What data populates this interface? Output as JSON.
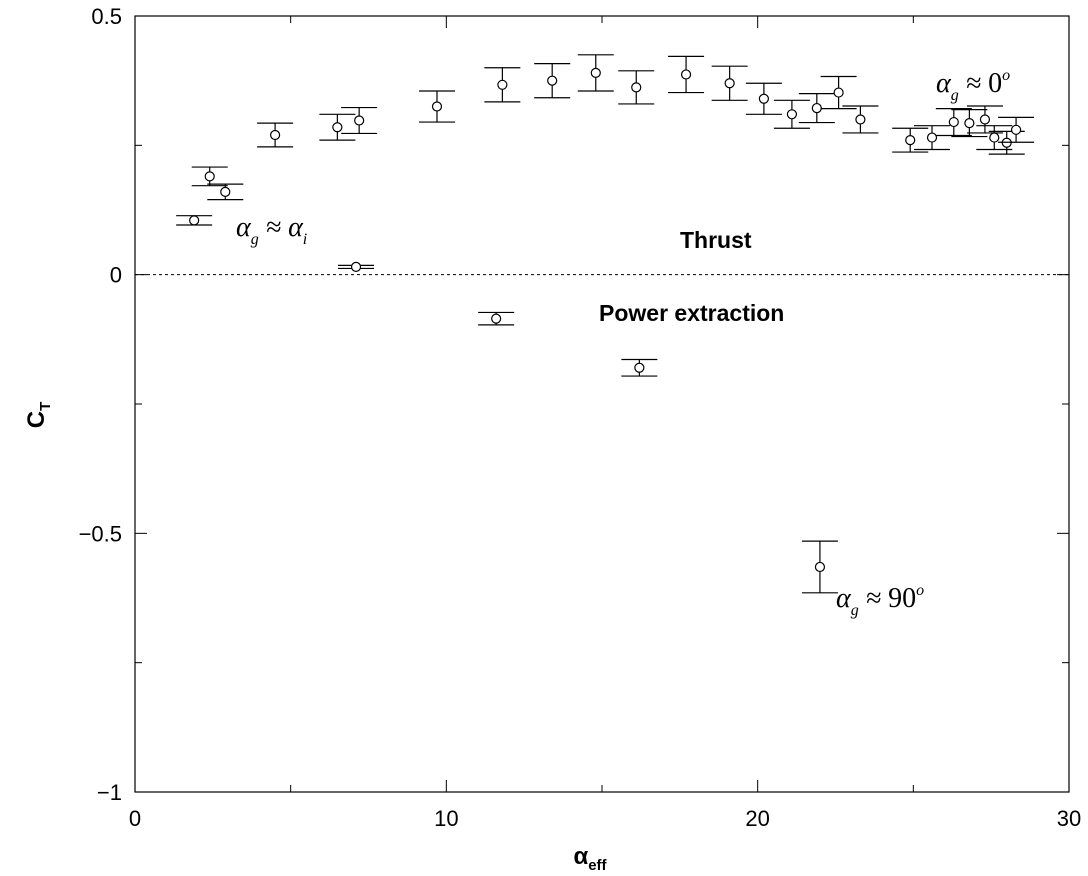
{
  "chart_data": {
    "type": "scatter",
    "title": "",
    "xlabel": "α",
    "xlabel_sub": "eff",
    "ylabel": "C",
    "ylabel_sub": "T",
    "xlim": [
      0,
      30
    ],
    "ylim": [
      -1,
      0.5
    ],
    "x_ticks": [
      0,
      10,
      20,
      30
    ],
    "x_tick_labels": [
      "0",
      "10",
      "20",
      "30"
    ],
    "y_ticks": [
      -1,
      -0.5,
      0,
      0.5
    ],
    "y_tick_labels": [
      "−1",
      "−0.5",
      "0",
      "0.5"
    ],
    "grid": false,
    "reference_line": {
      "y": 0,
      "style": "dotted"
    },
    "series": [
      {
        "marker": "open-circle",
        "error_bars": true,
        "points": [
          {
            "x": 1.9,
            "y": 0.105,
            "err": 0.009
          },
          {
            "x": 2.4,
            "y": 0.19,
            "err": 0.018
          },
          {
            "x": 2.9,
            "y": 0.16,
            "err": 0.015
          },
          {
            "x": 4.5,
            "y": 0.27,
            "err": 0.023
          },
          {
            "x": 6.5,
            "y": 0.285,
            "err": 0.025
          },
          {
            "x": 7.1,
            "y": 0.015,
            "err": 0.003
          },
          {
            "x": 7.2,
            "y": 0.298,
            "err": 0.025
          },
          {
            "x": 9.7,
            "y": 0.325,
            "err": 0.03
          },
          {
            "x": 11.6,
            "y": -0.085,
            "err": 0.012
          },
          {
            "x": 11.8,
            "y": 0.367,
            "err": 0.033
          },
          {
            "x": 13.4,
            "y": 0.375,
            "err": 0.033
          },
          {
            "x": 14.8,
            "y": 0.39,
            "err": 0.035
          },
          {
            "x": 16.1,
            "y": 0.362,
            "err": 0.032
          },
          {
            "x": 16.2,
            "y": -0.18,
            "err": 0.016
          },
          {
            "x": 17.7,
            "y": 0.387,
            "err": 0.035
          },
          {
            "x": 19.1,
            "y": 0.37,
            "err": 0.033
          },
          {
            "x": 20.2,
            "y": 0.34,
            "err": 0.03
          },
          {
            "x": 21.1,
            "y": 0.31,
            "err": 0.027
          },
          {
            "x": 21.9,
            "y": 0.322,
            "err": 0.028
          },
          {
            "x": 22.0,
            "y": -0.565,
            "err": 0.05
          },
          {
            "x": 22.6,
            "y": 0.352,
            "err": 0.031
          },
          {
            "x": 23.3,
            "y": 0.3,
            "err": 0.026
          },
          {
            "x": 24.9,
            "y": 0.26,
            "err": 0.023
          },
          {
            "x": 25.6,
            "y": 0.265,
            "err": 0.023
          },
          {
            "x": 26.3,
            "y": 0.295,
            "err": 0.026
          },
          {
            "x": 26.8,
            "y": 0.293,
            "err": 0.026
          },
          {
            "x": 27.3,
            "y": 0.3,
            "err": 0.026
          },
          {
            "x": 27.6,
            "y": 0.265,
            "err": 0.023
          },
          {
            "x": 28.0,
            "y": 0.255,
            "err": 0.022
          },
          {
            "x": 28.3,
            "y": 0.28,
            "err": 0.024
          }
        ]
      }
    ],
    "annotations": {
      "thrust": "Thrust",
      "power_extraction": "Power extraction",
      "ag_ai": {
        "alpha": "α",
        "sub_g": "g",
        "approx": " ≈ ",
        "sub_i": "i"
      },
      "ag_0": {
        "alpha": "α",
        "sub_g": "g",
        "approx": " ≈ ",
        "value": "0",
        "sup": "o"
      },
      "ag_90": {
        "alpha": "α",
        "sub_g": "g",
        "approx": " ≈ ",
        "value": "90",
        "sup": "o"
      }
    }
  }
}
